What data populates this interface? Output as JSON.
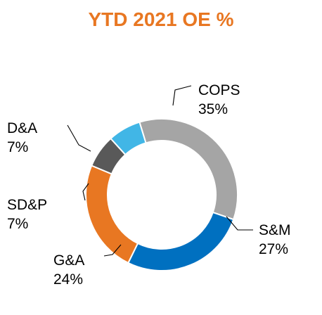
{
  "chart_data": {
    "type": "pie",
    "title": "YTD 2021 OE %",
    "categories": [
      "COPS",
      "S&M",
      "G&A",
      "SD&P",
      "D&A"
    ],
    "values": [
      35,
      27,
      24,
      7,
      7
    ],
    "value_labels": [
      "35%",
      "27%",
      "24%",
      "7%",
      "7%"
    ],
    "colors": [
      "#A5A5A5",
      "#0070C0",
      "#E87722",
      "#595959",
      "#41B6E6"
    ],
    "legend": "none",
    "style": "donut"
  }
}
